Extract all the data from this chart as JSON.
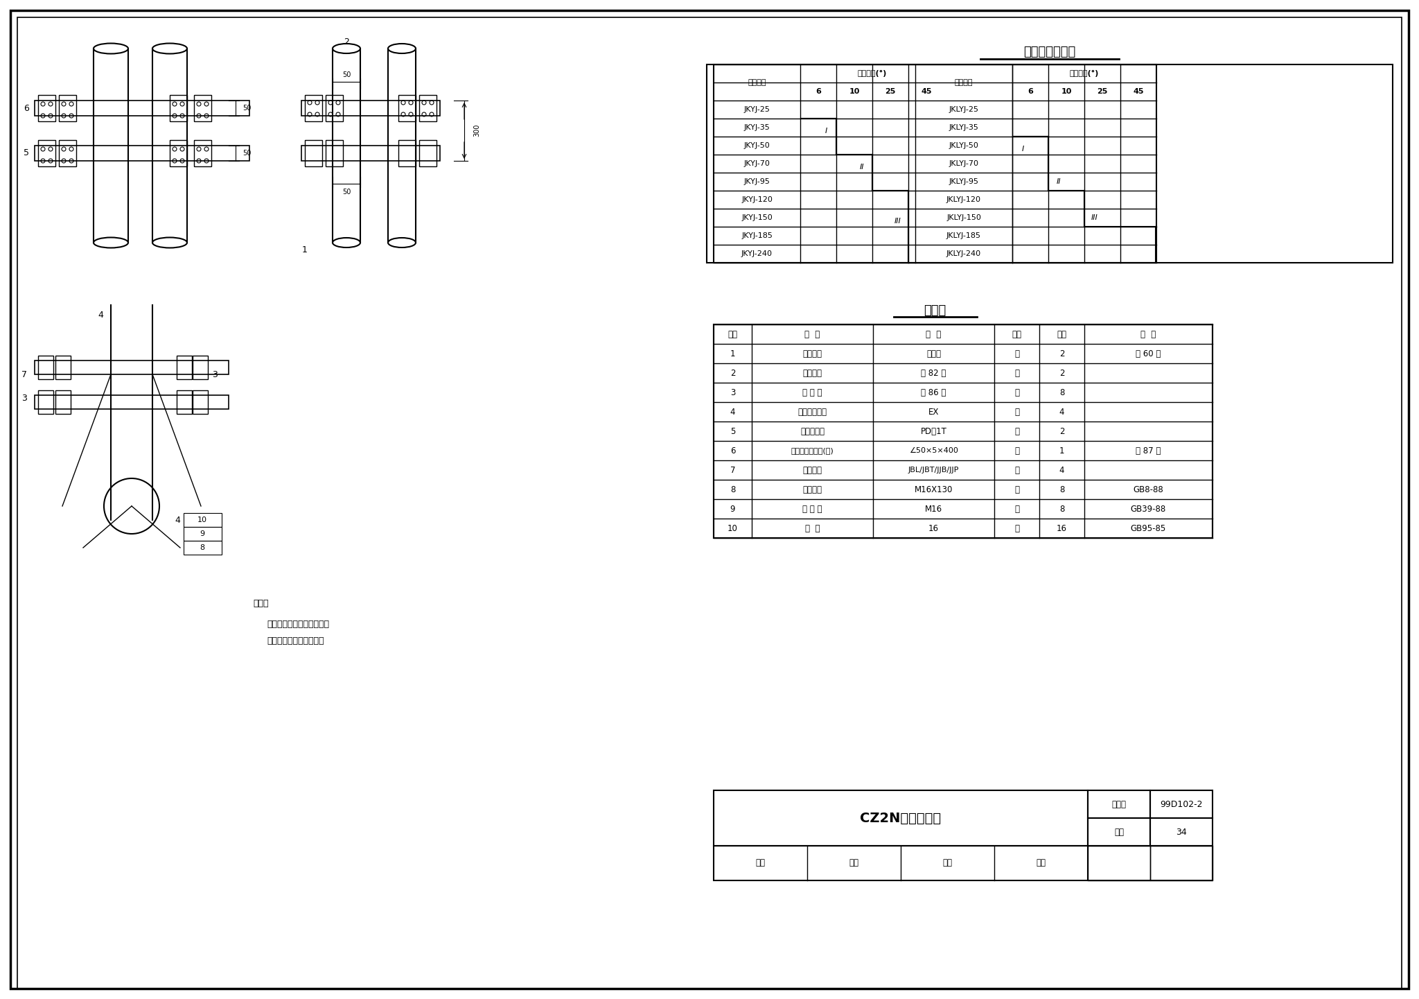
{
  "title_table1": "槽钢横担选择表",
  "title_table2": "明细表",
  "table1_headers": [
    "导线规格",
    "线路转角(°)",
    "导线规格",
    "线路转角(°)"
  ],
  "table1_sub_headers": [
    "6",
    "10",
    "25",
    "45"
  ],
  "table1_left_rows": [
    "JKYJ-25",
    "JKYJ-35",
    "JKYJ-50",
    "JKYJ-70",
    "JKYJ-95",
    "JKYJ-120",
    "JKYJ-150",
    "JKYJ-185",
    "JKYJ-240"
  ],
  "table1_right_rows": [
    "JKLYJ-25",
    "JKLYJ-35",
    "JKLYJ-50",
    "JKLYJ-70",
    "JKLYJ-95",
    "JKLYJ-120",
    "JKLYJ-150",
    "JKLYJ-185",
    "JKLYJ-240"
  ],
  "table2_headers": [
    "序号",
    "名  称",
    "规  格",
    "单位",
    "数量",
    "附  注"
  ],
  "table2_rows": [
    [
      "1",
      "槽钢横担",
      "见上表",
      "根",
      "2",
      "见 60 页"
    ],
    [
      "2",
      "槽钢抱箍",
      "见 82 页",
      "付",
      "2",
      ""
    ],
    [
      "3",
      "铁 拉 板",
      "见 86 页",
      "块",
      "8",
      ""
    ],
    [
      "4",
      "线轴式绝缘子",
      "EX",
      "个",
      "4",
      ""
    ],
    [
      "5",
      "针式绝缘子",
      "PD－1T",
      "个",
      "2",
      ""
    ],
    [
      "6",
      "针式地锚子支架(一)",
      "∠50×5×400",
      "根",
      "1",
      "见 87 页"
    ],
    [
      "7",
      "并沟线夹",
      "JBL/JBT/JJB/JJP",
      "个",
      "4",
      ""
    ],
    [
      "8",
      "方头螺栓",
      "M16X130",
      "个",
      "8",
      "GB8-88"
    ],
    [
      "9",
      "方 螺 母",
      "M16",
      "个",
      "8",
      "GB39-88"
    ],
    [
      "10",
      "垫  圈",
      "16",
      "个",
      "16",
      "GB95-85"
    ]
  ],
  "drawing_title": "CZ2N横担组装图",
  "drawing_atlas": "99D102-2",
  "drawing_page": "34",
  "note_text": "说明：\n    铁拉板根据槽钢规格不同可\n    选择（一）或（二）型。",
  "bottom_row": "审核|校对|设计|制图",
  "bg_color": "#ffffff",
  "border_color": "#000000"
}
